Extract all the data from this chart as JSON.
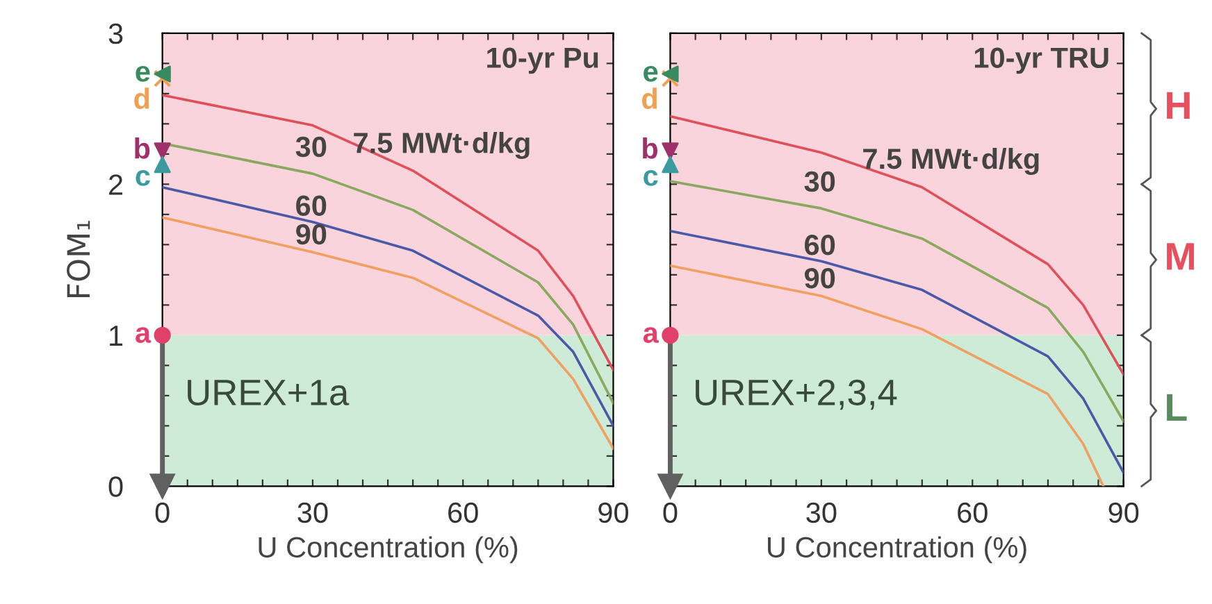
{
  "chart_data": [
    {
      "type": "line",
      "title": "10-yr Pu",
      "xlabel": "U Concentration (%)",
      "ylabel": "FOM₁",
      "annotations": [
        "UREX+1a"
      ],
      "xlim": [
        0,
        90
      ],
      "ylim": [
        0,
        3
      ],
      "xticks": [
        0,
        {
          "value": 5,
          "label": null
        },
        {
          "value": 10,
          "label": null
        },
        {
          "value": 15,
          "label": null
        },
        {
          "value": 20,
          "label": null
        },
        {
          "value": 25,
          "label": null
        },
        30,
        {
          "value": 35,
          "label": null
        },
        {
          "value": 40,
          "label": null
        },
        {
          "value": 45,
          "label": null
        },
        {
          "value": 50,
          "label": null
        },
        {
          "value": 55,
          "label": null
        },
        60,
        {
          "value": 65,
          "label": null
        },
        {
          "value": 70,
          "label": null
        },
        {
          "value": 75,
          "label": null
        },
        {
          "value": 80,
          "label": null
        },
        {
          "value": 85,
          "label": null
        },
        90
      ],
      "yticks": [
        0,
        {
          "value": 0.2,
          "label": null
        },
        {
          "value": 0.4,
          "label": null
        },
        {
          "value": 0.6,
          "label": null
        },
        {
          "value": 0.8,
          "label": null
        },
        1,
        {
          "value": 1.2,
          "label": null
        },
        {
          "value": 1.4,
          "label": null
        },
        {
          "value": 1.6,
          "label": null
        },
        {
          "value": 1.8,
          "label": null
        },
        2,
        {
          "value": 2.2,
          "label": null
        },
        {
          "value": 2.4,
          "label": null
        },
        {
          "value": 2.6,
          "label": null
        },
        {
          "value": 2.8,
          "label": null
        },
        3
      ],
      "bands": [
        {
          "axis": "y",
          "from": 0,
          "to": 1,
          "color": "#cdebd6"
        },
        {
          "axis": "y",
          "from": 1,
          "to": 3,
          "color": "#f9d4dc"
        }
      ],
      "series": [
        {
          "name": "7.5 MWt·d/kg",
          "color": "#e0505a",
          "x": [
            0,
            30,
            50,
            75,
            82,
            90
          ],
          "values": [
            2.59,
            2.39,
            2.09,
            1.56,
            1.26,
            0.77
          ]
        },
        {
          "name": "30",
          "color": "#8aa860",
          "x": [
            0,
            30,
            50,
            75,
            82,
            90
          ],
          "values": [
            2.27,
            2.07,
            1.83,
            1.35,
            1.07,
            0.55
          ]
        },
        {
          "name": "60",
          "color": "#4a5aa8",
          "x": [
            0,
            30,
            50,
            75,
            82,
            90
          ],
          "values": [
            1.98,
            1.75,
            1.56,
            1.13,
            0.89,
            0.4
          ]
        },
        {
          "name": "90",
          "color": "#f0a060",
          "x": [
            0,
            30,
            50,
            75,
            82,
            90
          ],
          "values": [
            1.78,
            1.55,
            1.38,
            0.98,
            0.71,
            0.25
          ]
        },
        {
          "type": "line",
          "color": "#606060",
          "x": [
            0,
            0
          ],
          "values": [
            1,
            0
          ],
          "marker": "triangle-down"
        },
        {
          "type": "scatter",
          "name": "a",
          "color": "#e0406a",
          "x": [
            0
          ],
          "values": [
            1.0
          ],
          "marker": "circle"
        },
        {
          "type": "scatter",
          "name": "b",
          "color": "#a0306a",
          "x": [
            0
          ],
          "values": [
            2.22
          ],
          "marker": "triangle-down"
        },
        {
          "type": "scatter",
          "name": "c",
          "color": "#3a9aa0",
          "x": [
            0
          ],
          "values": [
            2.13
          ],
          "marker": "triangle"
        },
        {
          "type": "scatter",
          "name": "d",
          "color": "#f0a050",
          "x": [
            0
          ],
          "values": [
            2.7
          ],
          "marker": "cross"
        },
        {
          "type": "scatter",
          "name": "e",
          "color": "#3a8a60",
          "x": [
            0
          ],
          "values": [
            2.73
          ],
          "marker": "triangle-left"
        }
      ]
    },
    {
      "type": "line",
      "title": "10-yr TRU",
      "xlabel": "U Concentration (%)",
      "annotations": [
        "UREX+2,3,4",
        "H",
        "M",
        "L"
      ],
      "tick_labels": "x",
      "xlim": [
        0,
        90
      ],
      "ylim": [
        0,
        3
      ],
      "xticks": [
        0,
        {
          "value": 5,
          "label": null
        },
        {
          "value": 10,
          "label": null
        },
        {
          "value": 15,
          "label": null
        },
        {
          "value": 20,
          "label": null
        },
        {
          "value": 25,
          "label": null
        },
        30,
        {
          "value": 35,
          "label": null
        },
        {
          "value": 40,
          "label": null
        },
        {
          "value": 45,
          "label": null
        },
        {
          "value": 50,
          "label": null
        },
        {
          "value": 55,
          "label": null
        },
        60,
        {
          "value": 65,
          "label": null
        },
        {
          "value": 70,
          "label": null
        },
        {
          "value": 75,
          "label": null
        },
        {
          "value": 80,
          "label": null
        },
        {
          "value": 85,
          "label": null
        },
        90
      ],
      "yticks": [
        0,
        {
          "value": 0.2,
          "label": null
        },
        {
          "value": 0.4,
          "label": null
        },
        {
          "value": 0.6,
          "label": null
        },
        {
          "value": 0.8,
          "label": null
        },
        1,
        {
          "value": 1.2,
          "label": null
        },
        {
          "value": 1.4,
          "label": null
        },
        {
          "value": 1.6,
          "label": null
        },
        {
          "value": 1.8,
          "label": null
        },
        2,
        {
          "value": 2.2,
          "label": null
        },
        {
          "value": 2.4,
          "label": null
        },
        {
          "value": 2.6,
          "label": null
        },
        {
          "value": 2.8,
          "label": null
        },
        3
      ],
      "bands": [
        {
          "axis": "y",
          "from": 0,
          "to": 1,
          "color": "#cdebd6"
        },
        {
          "axis": "y",
          "from": 1,
          "to": 3,
          "color": "#f9d4dc"
        }
      ],
      "series": [
        {
          "name": "7.5 MWt·d/kg",
          "color": "#e0505a",
          "x": [
            0,
            30,
            50,
            75,
            82,
            90
          ],
          "values": [
            2.45,
            2.21,
            1.98,
            1.47,
            1.2,
            0.74
          ]
        },
        {
          "name": "30",
          "color": "#8aa860",
          "x": [
            0,
            30,
            50,
            75,
            82,
            90
          ],
          "values": [
            2.02,
            1.84,
            1.64,
            1.18,
            0.89,
            0.43
          ]
        },
        {
          "name": "60",
          "color": "#4a5aa8",
          "x": [
            0,
            30,
            50,
            75,
            82,
            90
          ],
          "values": [
            1.69,
            1.49,
            1.3,
            0.86,
            0.58,
            0.09
          ]
        },
        {
          "name": "90",
          "color": "#f0a060",
          "x": [
            0,
            30,
            50,
            75,
            82,
            86
          ],
          "values": [
            1.46,
            1.26,
            1.04,
            0.61,
            0.28,
            0
          ]
        },
        {
          "type": "line",
          "color": "#606060",
          "x": [
            0,
            0
          ],
          "values": [
            1,
            0
          ],
          "marker": "triangle-down"
        },
        {
          "type": "scatter",
          "name": "a",
          "color": "#e0406a",
          "x": [
            0
          ],
          "values": [
            1.0
          ],
          "marker": "circle"
        },
        {
          "type": "scatter",
          "name": "b",
          "color": "#a0306a",
          "x": [
            0
          ],
          "values": [
            2.22
          ],
          "marker": "triangle-down"
        },
        {
          "type": "scatter",
          "name": "c",
          "color": "#3a9aa0",
          "x": [
            0
          ],
          "values": [
            2.13
          ],
          "marker": "triangle"
        },
        {
          "type": "scatter",
          "name": "d",
          "color": "#f0a050",
          "x": [
            0
          ],
          "values": [
            2.7
          ],
          "marker": "cross"
        },
        {
          "type": "scatter",
          "name": "e",
          "color": "#3a8a60",
          "x": [
            0
          ],
          "values": [
            2.73
          ],
          "marker": "triangle-left"
        }
      ]
    }
  ]
}
